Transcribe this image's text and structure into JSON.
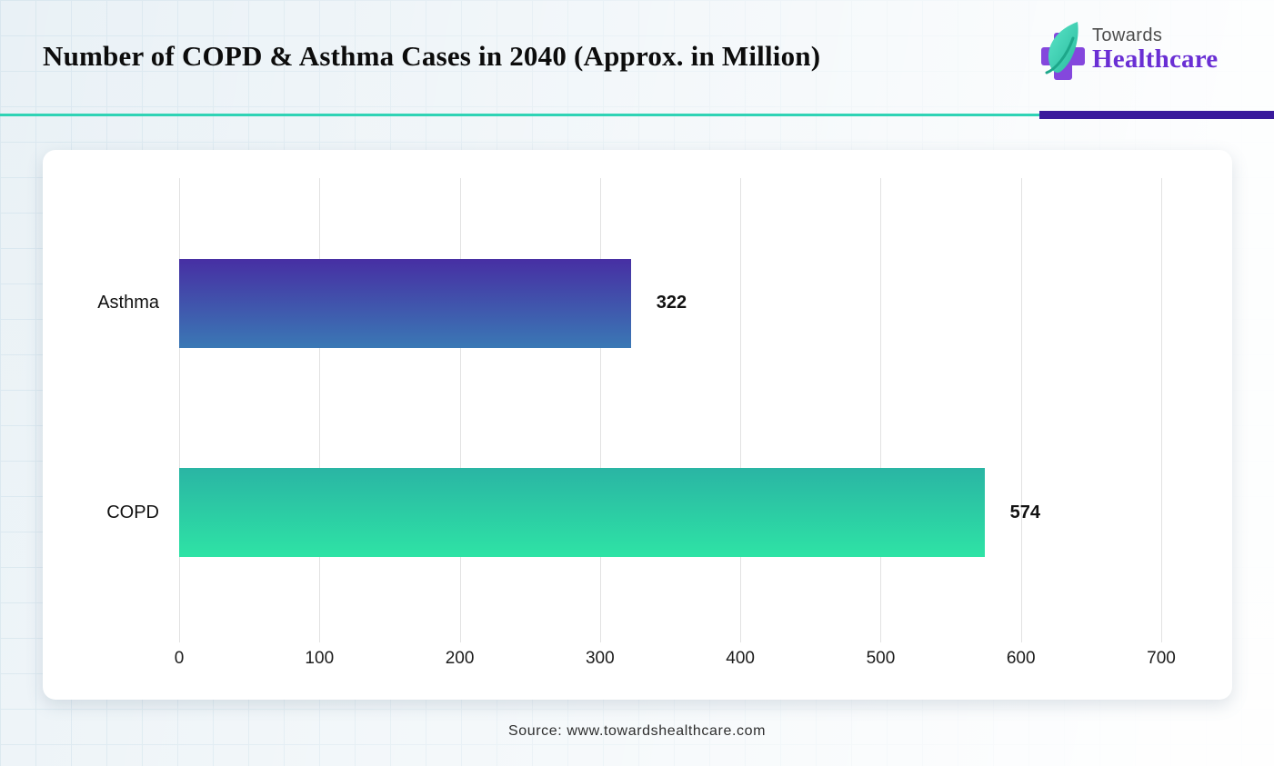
{
  "header": {
    "title": "Number of COPD & Asthma Cases in 2040 (Approx. in Million)",
    "logo": {
      "line1": "Towards",
      "line2": "Healthcare",
      "cross_color": "#8447dd",
      "leaf_colors": [
        "#5ce5c9",
        "#28bb9d"
      ]
    }
  },
  "divider": {
    "teal_color": "#2fd3b5",
    "purple_color": "#3a1a9c"
  },
  "chart_data": {
    "type": "bar",
    "orientation": "horizontal",
    "title": "Number of COPD & Asthma Cases in 2040 (Approx. in Million)",
    "categories": [
      "Asthma",
      "COPD"
    ],
    "values": [
      322,
      574
    ],
    "value_labels": [
      "322",
      "574"
    ],
    "bar_gradients": [
      [
        "#472fa3",
        "#3a78b5"
      ],
      [
        "#2ab5a4",
        "#2ee3a5"
      ]
    ],
    "xlim": [
      0,
      700
    ],
    "xticks": [
      0,
      100,
      200,
      300,
      400,
      500,
      600,
      700
    ],
    "grid": "vertical",
    "gridline_color": "#e2e2e2",
    "legend": "none",
    "xlabel": "",
    "ylabel": ""
  },
  "footer": {
    "source": "Source: www.towardshealthcare.com"
  }
}
